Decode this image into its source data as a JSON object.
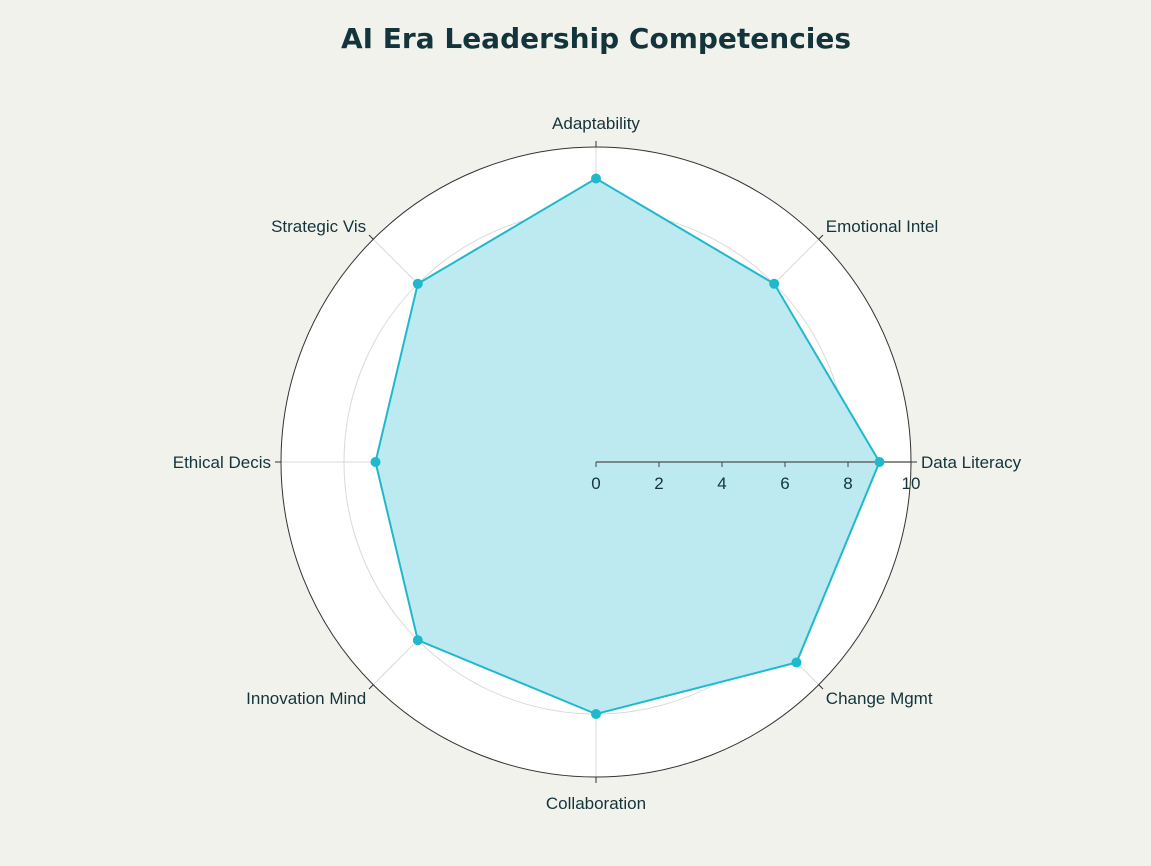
{
  "chart_data": {
    "type": "radar",
    "title": "AI Era Leadership Competencies",
    "categories": [
      "Data Literacy",
      "Emotional Intel",
      "Adaptability",
      "Strategic Vis",
      "Ethical Decis",
      "Innovation Mind",
      "Collaboration",
      "Change Mgmt"
    ],
    "series": [
      {
        "values": [
          9,
          8,
          9,
          8,
          7,
          8,
          8,
          9
        ]
      }
    ],
    "radial_range": [
      0,
      10
    ],
    "radial_ticks": [
      0,
      2,
      4,
      6,
      8,
      10
    ],
    "grid": true,
    "legend": "none"
  },
  "colors": {
    "background": "#f2f2ed",
    "plot_background": "#ffffff",
    "line": "#1fb8cd",
    "fill": "#bde9f0",
    "grid": "#d9d9d9",
    "outer_ring": "#333333",
    "text": "#13343b"
  }
}
